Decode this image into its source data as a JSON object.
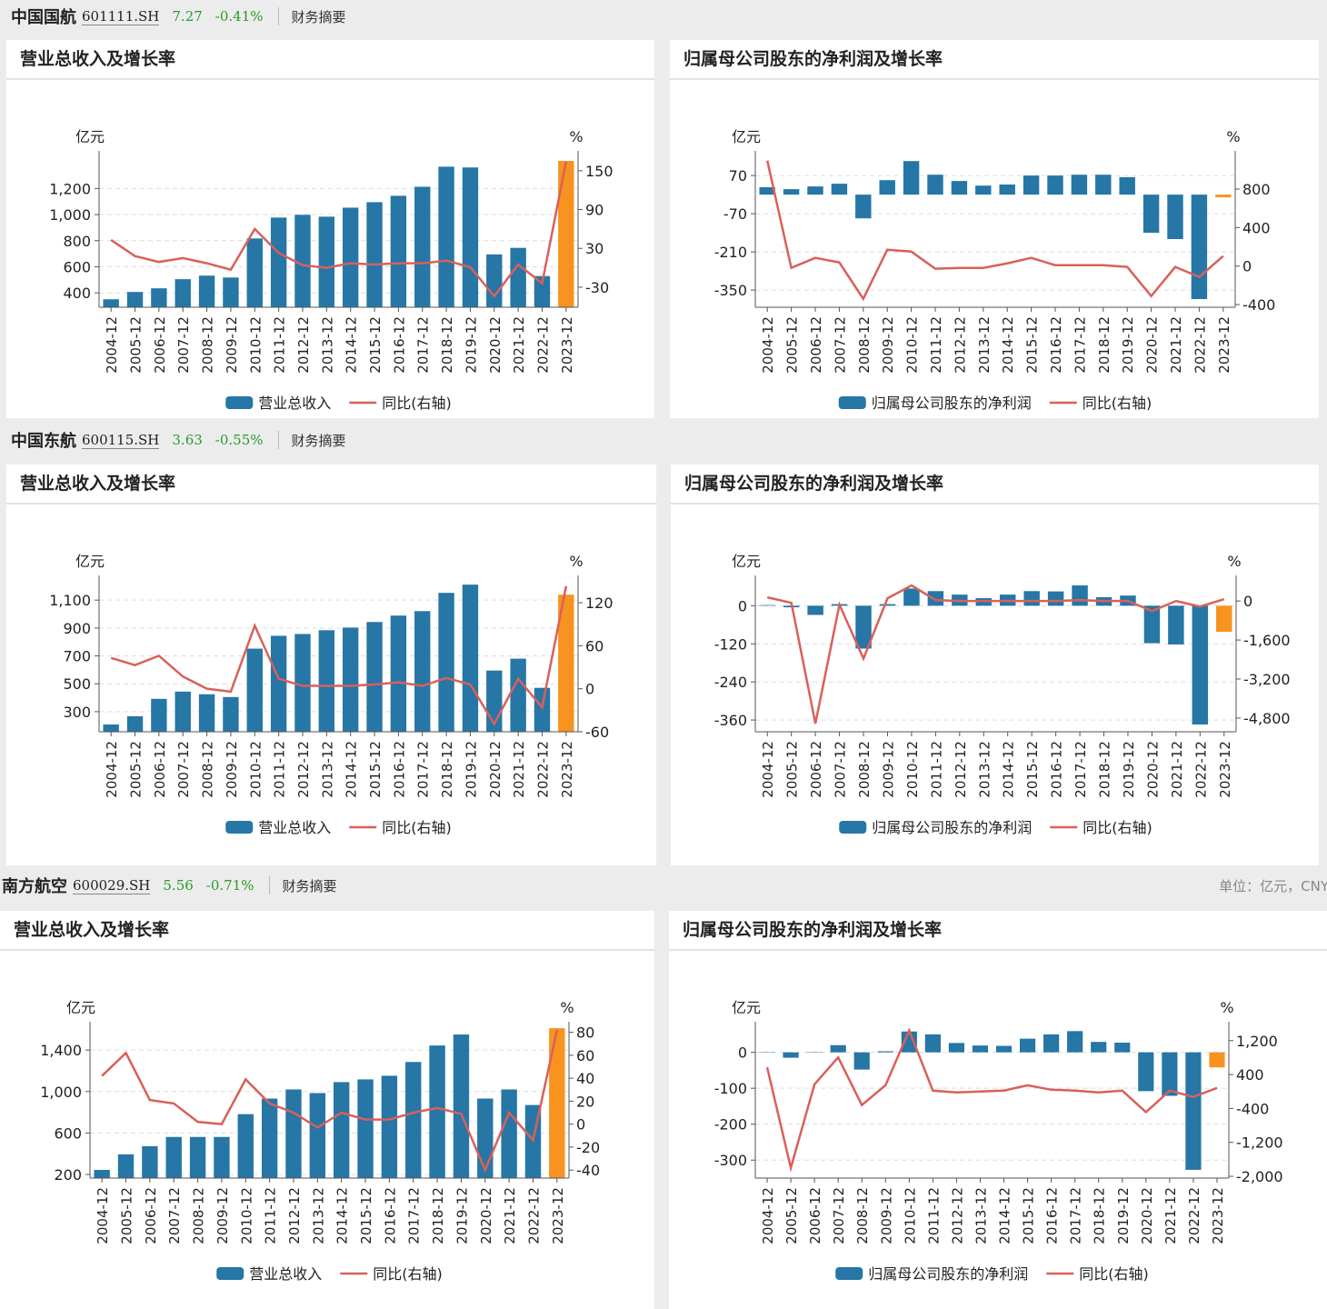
{
  "stocks": [
    {
      "name": "中国国航",
      "code": "601111.SH",
      "price": "7.27",
      "change": "-0.41%",
      "link": "财务摘要"
    },
    {
      "name": "中国东航",
      "code": "600115.SH",
      "price": "3.63",
      "change": "-0.55%",
      "link": "财务摘要"
    },
    {
      "name": "南方航空",
      "code": "600029.SH",
      "price": "5.56",
      "change": "-0.71%",
      "link": "财务摘要"
    }
  ],
  "unit_note": "单位：亿元，CNY",
  "chart_data": [
    {
      "type": "bar",
      "title": "营业总收入及增长率",
      "y_unit": "亿元",
      "y2_unit": "%",
      "categories": [
        "2004-12",
        "2005-12",
        "2006-12",
        "2007-12",
        "2008-12",
        "2009-12",
        "2010-12",
        "2011-12",
        "2012-12",
        "2013-12",
        "2014-12",
        "2015-12",
        "2016-12",
        "2017-12",
        "2018-12",
        "2019-12",
        "2020-12",
        "2021-12",
        "2022-12",
        "2023-12"
      ],
      "series": [
        {
          "name": "营业总收入",
          "color": "#2676a6",
          "colors": [
            "#2676a6",
            "#2676a6",
            "#2676a6",
            "#2676a6",
            "#2676a6",
            "#2676a6",
            "#2676a6",
            "#2676a6",
            "#2676a6",
            "#2676a6",
            "#2676a6",
            "#2676a6",
            "#2676a6",
            "#2676a6",
            "#2676a6",
            "#2676a6",
            "#2676a6",
            "#2676a6",
            "#2676a6",
            "#f7931e"
          ],
          "values": [
            351,
            407,
            435,
            505,
            532,
            518,
            817,
            977,
            998,
            984,
            1053,
            1095,
            1144,
            1213,
            1367,
            1361,
            695,
            745,
            529,
            1411
          ]
        },
        {
          "name": "同比(右轴)",
          "color": "#d9605a",
          "axis": "y2",
          "values": [
            43,
            18,
            9,
            15,
            7,
            -3,
            60,
            23,
            4,
            0,
            7,
            5,
            7,
            7,
            11,
            1,
            -44,
            5,
            -24,
            164
          ]
        }
      ],
      "ylim": [
        290,
        1460
      ],
      "yticks": [
        400,
        600,
        800,
        {
          "value": 1000,
          "label": "1,000"
        },
        {
          "value": 1200,
          "label": "1,200"
        }
      ],
      "y2lim": [
        -61,
        175
      ],
      "y2ticks": [
        -30,
        30,
        90,
        150
      ],
      "grid": true
    },
    {
      "type": "bar",
      "title": "归属母公司股东的净利润及增长率",
      "y_unit": "亿元",
      "y2_unit": "%",
      "categories": [
        "2004-12",
        "2005-12",
        "2006-12",
        "2007-12",
        "2008-12",
        "2009-12",
        "2010-12",
        "2011-12",
        "2012-12",
        "2013-12",
        "2014-12",
        "2015-12",
        "2016-12",
        "2017-12",
        "2018-12",
        "2019-12",
        "2020-12",
        "2021-12",
        "2022-12",
        "2023-12"
      ],
      "series": [
        {
          "name": "归属母公司股东的净利润",
          "color": "#2676a6",
          "colors": [
            "#2676a6",
            "#2676a6",
            "#2676a6",
            "#2676a6",
            "#2676a6",
            "#2676a6",
            "#2676a6",
            "#2676a6",
            "#2676a6",
            "#2676a6",
            "#2676a6",
            "#2676a6",
            "#2676a6",
            "#2676a6",
            "#2676a6",
            "#2676a6",
            "#2676a6",
            "#2676a6",
            "#2676a6",
            "#f7931e"
          ],
          "values": [
            27,
            20,
            30,
            40,
            -87,
            53,
            123,
            73,
            50,
            33,
            37,
            70,
            70,
            73,
            73,
            64,
            -140,
            -163,
            -383,
            -10
          ]
        },
        {
          "name": "同比(右轴)",
          "color": "#d9605a",
          "axis": "y2",
          "values": [
            1096,
            -19,
            85,
            38,
            -340,
            170,
            151,
            -28,
            -19,
            -19,
            28,
            85,
            9,
            9,
            9,
            -9,
            -312,
            -9,
            -113,
            104
          ]
        }
      ],
      "ylim": [
        -413,
        147
      ],
      "yticks": [
        -350,
        -210,
        -70,
        70
      ],
      "y2lim": [
        -428,
        1159
      ],
      "y2ticks": [
        -400,
        0,
        400,
        800
      ],
      "grid": true
    },
    {
      "type": "bar",
      "title": "营业总收入及增长率",
      "y_unit": "亿元",
      "y2_unit": "%",
      "categories": [
        "2004-12",
        "2005-12",
        "2006-12",
        "2007-12",
        "2008-12",
        "2009-12",
        "2010-12",
        "2011-12",
        "2012-12",
        "2013-12",
        "2014-12",
        "2015-12",
        "2016-12",
        "2017-12",
        "2018-12",
        "2019-12",
        "2020-12",
        "2021-12",
        "2022-12",
        "2023-12"
      ],
      "series": [
        {
          "name": "营业总收入",
          "color": "#2676a6",
          "colors": [
            "#2676a6",
            "#2676a6",
            "#2676a6",
            "#2676a6",
            "#2676a6",
            "#2676a6",
            "#2676a6",
            "#2676a6",
            "#2676a6",
            "#2676a6",
            "#2676a6",
            "#2676a6",
            "#2676a6",
            "#2676a6",
            "#2676a6",
            "#2676a6",
            "#2676a6",
            "#2676a6",
            "#2676a6",
            "#f7931e"
          ],
          "values": [
            208,
            267,
            392,
            444,
            425,
            405,
            752,
            844,
            857,
            884,
            903,
            943,
            989,
            1021,
            1152,
            1211,
            595,
            680,
            471,
            1139
          ]
        },
        {
          "name": "同比(右轴)",
          "color": "#d9605a",
          "axis": "y2",
          "values": [
            43,
            33,
            46,
            17,
            0,
            -4,
            88,
            14,
            4,
            4,
            4,
            6,
            9,
            4,
            15,
            6,
            -49,
            14,
            -26,
            143
          ]
        }
      ],
      "ylim": [
        156,
        1251
      ],
      "yticks": [
        300,
        500,
        700,
        900,
        {
          "value": 1100,
          "label": "1,100"
        }
      ],
      "y2lim": [
        -60,
        153
      ],
      "y2ticks": [
        -60,
        0,
        60,
        120
      ],
      "grid": true
    },
    {
      "type": "bar",
      "title": "归属母公司股东的净利润及增长率",
      "y_unit": "亿元",
      "y2_unit": "%",
      "categories": [
        "2004-12",
        "2005-12",
        "2006-12",
        "2007-12",
        "2008-12",
        "2009-12",
        "2010-12",
        "2011-12",
        "2012-12",
        "2013-12",
        "2014-12",
        "2015-12",
        "2016-12",
        "2017-12",
        "2018-12",
        "2019-12",
        "2020-12",
        "2021-12",
        "2022-12",
        "2023-12"
      ],
      "series": [
        {
          "name": "归属母公司股东的净利润",
          "color": "#2676a6",
          "colors": [
            "#2676a6",
            "#2676a6",
            "#2676a6",
            "#2676a6",
            "#2676a6",
            "#2676a6",
            "#2676a6",
            "#2676a6",
            "#2676a6",
            "#2676a6",
            "#2676a6",
            "#2676a6",
            "#2676a6",
            "#2676a6",
            "#2676a6",
            "#2676a6",
            "#2676a6",
            "#2676a6",
            "#2676a6",
            "#f7931e"
          ],
          "values": [
            2,
            -5,
            -29,
            5,
            -135,
            5,
            54,
            46,
            35,
            24,
            35,
            46,
            45,
            64,
            27,
            32,
            -118,
            -122,
            -374,
            -82
          ]
        },
        {
          "name": "同比(右轴)",
          "color": "#d9605a",
          "axis": "y2",
          "values": [
            150,
            -75,
            -5025,
            -150,
            -2362,
            112,
            637,
            37,
            0,
            0,
            0,
            0,
            0,
            37,
            0,
            0,
            -412,
            0,
            -225,
            75
          ]
        }
      ],
      "ylim": [
        -397,
        84
      ],
      "yticks": [
        -360,
        -240,
        -120,
        0
      ],
      "y2lim": [
        -5362,
        900
      ],
      "y2ticks": [
        {
          "value": -4800,
          "label": "-4,800"
        },
        {
          "value": -3200,
          "label": "-3,200"
        },
        {
          "value": -1600,
          "label": "-1,600"
        },
        0
      ],
      "grid": true
    },
    {
      "type": "bar",
      "title": "营业总收入及增长率",
      "y_unit": "亿元",
      "y2_unit": "%",
      "categories": [
        "2004-12",
        "2005-12",
        "2006-12",
        "2007-12",
        "2008-12",
        "2009-12",
        "2010-12",
        "2011-12",
        "2012-12",
        "2013-12",
        "2014-12",
        "2015-12",
        "2016-12",
        "2017-12",
        "2018-12",
        "2019-12",
        "2020-12",
        "2021-12",
        "2022-12",
        "2023-12"
      ],
      "series": [
        {
          "name": "营业总收入",
          "color": "#2676a6",
          "colors": [
            "#2676a6",
            "#2676a6",
            "#2676a6",
            "#2676a6",
            "#2676a6",
            "#2676a6",
            "#2676a6",
            "#2676a6",
            "#2676a6",
            "#2676a6",
            "#2676a6",
            "#2676a6",
            "#2676a6",
            "#2676a6",
            "#2676a6",
            "#2676a6",
            "#2676a6",
            "#2676a6",
            "#2676a6",
            "#f7931e"
          ],
          "values": [
            244,
            394,
            473,
            562,
            562,
            562,
            782,
            932,
            1020,
            985,
            1091,
            1117,
            1152,
            1285,
            1444,
            1550,
            932,
            1020,
            870,
            1611
          ]
        },
        {
          "name": "同比(右轴)",
          "color": "#d9605a",
          "axis": "y2",
          "values": [
            42,
            62,
            21,
            18,
            2,
            0,
            39,
            18,
            10,
            -3,
            10,
            4,
            4,
            10,
            14,
            9,
            -40,
            10,
            -14,
            82
          ]
        }
      ],
      "ylim": [
        165,
        1638
      ],
      "yticks": [
        200,
        600,
        {
          "value": 1000,
          "label": "1,000"
        },
        {
          "value": 1400,
          "label": "1,400"
        }
      ],
      "y2lim": [
        -47,
        86
      ],
      "y2ticks": [
        -40,
        -20,
        0,
        20,
        40,
        60,
        80
      ],
      "grid": true
    },
    {
      "type": "bar",
      "title": "归属母公司股东的净利润及增长率",
      "y_unit": "亿元",
      "y2_unit": "%",
      "categories": [
        "2004-12",
        "2005-12",
        "2006-12",
        "2007-12",
        "2008-12",
        "2009-12",
        "2010-12",
        "2011-12",
        "2012-12",
        "2013-12",
        "2014-12",
        "2015-12",
        "2016-12",
        "2017-12",
        "2018-12",
        "2019-12",
        "2020-12",
        "2021-12",
        "2022-12",
        "2023-12"
      ],
      "series": [
        {
          "name": "归属母公司股东的净利润",
          "color": "#2676a6",
          "colors": [
            "#2676a6",
            "#2676a6",
            "#2676a6",
            "#2676a6",
            "#2676a6",
            "#2676a6",
            "#2676a6",
            "#2676a6",
            "#2676a6",
            "#2676a6",
            "#2676a6",
            "#2676a6",
            "#2676a6",
            "#2676a6",
            "#2676a6",
            "#2676a6",
            "#2676a6",
            "#2676a6",
            "#2676a6",
            "#f7931e"
          ],
          "values": [
            1,
            -15,
            1,
            20,
            -48,
            3,
            58,
            50,
            26,
            19,
            18,
            38,
            50,
            59,
            29,
            27,
            -108,
            -121,
            -327,
            -42
          ]
        },
        {
          "name": "同比(右轴)",
          "color": "#d9605a",
          "axis": "y2",
          "values": [
            572,
            -1801,
            170,
            805,
            -318,
            148,
            1441,
            21,
            -21,
            0,
            21,
            148,
            42,
            21,
            -21,
            21,
            -487,
            21,
            -127,
            85
          ]
        }
      ],
      "ylim": [
        -350,
        75
      ],
      "yticks": [
        -300,
        -200,
        -100,
        0
      ],
      "y2lim": [
        -2042,
        1560
      ],
      "y2ticks": [
        {
          "value": -2000,
          "label": "-2,000"
        },
        {
          "value": -1200,
          "label": "-1,200"
        },
        -400,
        400,
        {
          "value": 1200,
          "label": "1,200"
        }
      ],
      "grid": true
    }
  ]
}
